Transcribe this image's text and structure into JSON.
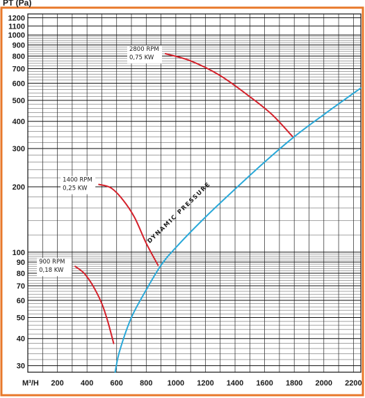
{
  "chart_data": {
    "type": "line",
    "ylabel": "PT (Pa)",
    "xlabel": "M³/H",
    "x_scale": "linear",
    "y_scale": "log",
    "xlim": [
      0,
      2250
    ],
    "ylim": [
      28,
      1250
    ],
    "x_ticks": [
      200,
      400,
      600,
      800,
      1000,
      1200,
      1400,
      1600,
      1800,
      2000,
      2200
    ],
    "y_ticks": [
      30,
      40,
      50,
      60,
      70,
      80,
      90,
      100,
      200,
      300,
      400,
      500,
      600,
      700,
      800,
      900,
      1000,
      1100,
      1200
    ],
    "grid": true,
    "frame_color": "#e8782a",
    "series": [
      {
        "name": "2800 RPM",
        "color": "#d4202a",
        "x": [
          930,
          1100,
          1300,
          1500,
          1650,
          1790
        ],
        "y": [
          820,
          760,
          650,
          520,
          430,
          340
        ]
      },
      {
        "name": "1400 RPM",
        "color": "#d4202a",
        "x": [
          480,
          560,
          640,
          720,
          800,
          880
        ],
        "y": [
          205,
          198,
          175,
          145,
          110,
          87
        ]
      },
      {
        "name": "900 RPM",
        "color": "#d4202a",
        "x": [
          320,
          380,
          440,
          500,
          540,
          580
        ],
        "y": [
          86,
          80,
          70,
          58,
          48,
          38
        ]
      },
      {
        "name": "DYNAMIC PRESSURE",
        "color": "#29a8d8",
        "x": [
          590,
          620,
          700,
          800,
          900,
          1000,
          1200,
          1400,
          1600,
          1800,
          2000,
          2250
        ],
        "y": [
          28,
          35,
          50,
          67,
          87,
          105,
          145,
          195,
          260,
          340,
          430,
          570
        ]
      }
    ],
    "annotations": [
      {
        "series": "2800 RPM",
        "lines": [
          "2800 RPM",
          "0,75 KW"
        ],
        "x": 930,
        "y": 820
      },
      {
        "series": "1400 RPM",
        "lines": [
          "1400 RPM",
          "0,25 KW"
        ],
        "x": 480,
        "y": 205
      },
      {
        "series": "900 RPM",
        "lines": [
          "900 RPM",
          "0,18 KW"
        ],
        "x": 320,
        "y": 86
      },
      {
        "series": "DYNAMIC PRESSURE",
        "lines": [
          "DYNAMIC PRESSURE"
        ],
        "x": 1030,
        "y": 150
      }
    ]
  }
}
